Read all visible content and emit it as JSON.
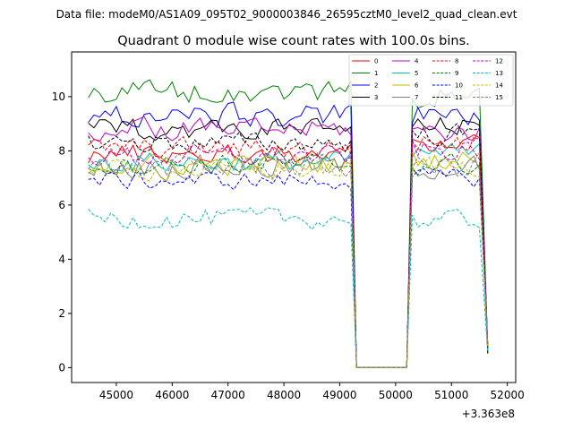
{
  "figure": {
    "suptitle": "Data file: modeM0/AS1A09_095T02_9000003846_26595cztM0_level2_quad_clean.evt"
  },
  "chart_data": {
    "type": "line",
    "title": "Quadrant 0 module wise count rates with 100.0s bins.",
    "xlabel": "",
    "ylabel": "",
    "x_offset_label": "+3.363e8",
    "xlim": [
      44200,
      52150
    ],
    "ylim": [
      -0.55,
      11.65
    ],
    "xticks": [
      45000,
      46000,
      47000,
      48000,
      49000,
      50000,
      51000,
      52000
    ],
    "xtick_labels": [
      "45000",
      "46000",
      "47000",
      "48000",
      "49000",
      "50000",
      "51000",
      "52000"
    ],
    "yticks": [
      0,
      2,
      4,
      6,
      8,
      10
    ],
    "ytick_labels": [
      "0",
      "2",
      "4",
      "6",
      "8",
      "10"
    ],
    "grid": false,
    "legend_position": "top-right",
    "x_segments": [
      {
        "start": 44500,
        "end": 49300,
        "step": 100
      },
      {
        "start": 50200,
        "end": 51650,
        "step": 100
      }
    ],
    "gap_zero_span": [
      49300,
      50200
    ],
    "series": [
      {
        "name": "0",
        "color": "#ff0000",
        "dash": "solid",
        "base1": 7.9,
        "base2": 8.3,
        "noise": 0.35
      },
      {
        "name": "1",
        "color": "#008000",
        "dash": "solid",
        "base1": 10.2,
        "base2": 10.0,
        "noise": 0.4
      },
      {
        "name": "2",
        "color": "#0000ff",
        "dash": "solid",
        "base1": 9.3,
        "base2": 9.3,
        "noise": 0.4
      },
      {
        "name": "3",
        "color": "#000000",
        "dash": "solid",
        "base1": 8.8,
        "base2": 8.9,
        "noise": 0.35
      },
      {
        "name": "4",
        "color": "#c000c0",
        "dash": "solid",
        "base1": 8.8,
        "base2": 8.7,
        "noise": 0.35
      },
      {
        "name": "5",
        "color": "#00bfbf",
        "dash": "solid",
        "base1": 7.6,
        "base2": 7.9,
        "noise": 0.35
      },
      {
        "name": "6",
        "color": "#bfbf00",
        "dash": "solid",
        "base1": 7.5,
        "base2": 7.7,
        "noise": 0.35
      },
      {
        "name": "7",
        "color": "#7f7f7f",
        "dash": "solid",
        "base1": 7.4,
        "base2": 7.4,
        "noise": 0.4
      },
      {
        "name": "8",
        "color": "#ff0000",
        "dash": "dashed",
        "base1": 8.1,
        "base2": 8.3,
        "noise": 0.35
      },
      {
        "name": "9",
        "color": "#008000",
        "dash": "dashed",
        "base1": 7.5,
        "base2": 7.5,
        "noise": 0.35
      },
      {
        "name": "10",
        "color": "#0000ff",
        "dash": "dashed",
        "base1": 6.9,
        "base2": 7.0,
        "noise": 0.3
      },
      {
        "name": "11",
        "color": "#000000",
        "dash": "dashed",
        "base1": 8.3,
        "base2": 8.6,
        "noise": 0.35
      },
      {
        "name": "12",
        "color": "#c000c0",
        "dash": "dashed",
        "base1": 7.8,
        "base2": 8.0,
        "noise": 0.35
      },
      {
        "name": "13",
        "color": "#00bfbf",
        "dash": "dashed",
        "base1": 5.5,
        "base2": 5.4,
        "noise": 0.35
      },
      {
        "name": "14",
        "color": "#bfbf00",
        "dash": "dashed",
        "base1": 7.3,
        "base2": 7.5,
        "noise": 0.35
      },
      {
        "name": "15",
        "color": "#7f7f7f",
        "dash": "dashed",
        "base1": 7.4,
        "base2": 7.4,
        "noise": 0.4
      }
    ]
  }
}
